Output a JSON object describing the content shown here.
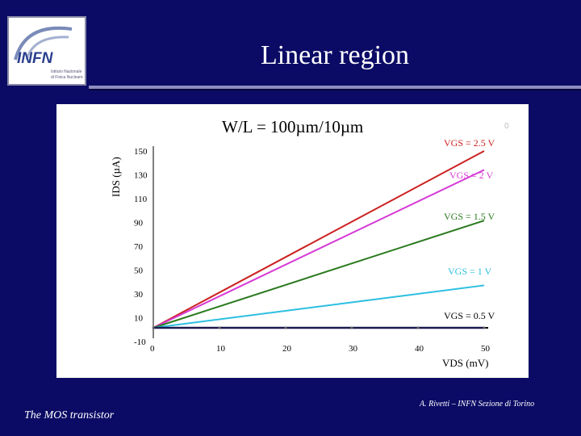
{
  "slide": {
    "title": "Linear region",
    "footer_left": "The MOS transistor",
    "footer_right": "A. Rivetti – INFN Sezione di Torino"
  },
  "logo": {
    "mark": "INFN",
    "line1": "Istituto Nazionale",
    "line2": "di Fisica Nucleare"
  },
  "colors": {
    "background": "#0b0b66",
    "vgs_2_5": "#cc2222",
    "vgs_2": "#d63ad6",
    "vgs_1_5": "#2a7a1e",
    "vgs_1": "#2bbfe0",
    "vgs_0_5": "#1a1a50"
  },
  "chart_data": {
    "type": "line",
    "title": "W/L = 100µm/10µm",
    "xlabel": "VDS (mV)",
    "ylabel": "IDS (µA)",
    "xlim": [
      0,
      50
    ],
    "ylim": [
      -10,
      160
    ],
    "x_ticks": [
      "0",
      "10",
      "20",
      "30",
      "40",
      "50"
    ],
    "y_ticks": [
      "150",
      "130",
      "110",
      "90",
      "70",
      "50",
      "30",
      "10",
      "-10"
    ],
    "extra_label": "0",
    "series": [
      {
        "name": "VGS = 2.5 V",
        "x": [
          0,
          50
        ],
        "y": [
          0,
          150
        ],
        "color": "#cc2222"
      },
      {
        "name": "VGS = 2 V",
        "x": [
          0,
          50
        ],
        "y": [
          0,
          134
        ],
        "color": "#d63ad6"
      },
      {
        "name": "VGS = 1.5 V",
        "x": [
          0,
          50
        ],
        "y": [
          0,
          91
        ],
        "color": "#2a7a1e"
      },
      {
        "name": "VGS = 1 V",
        "x": [
          0,
          50
        ],
        "y": [
          0,
          36
        ],
        "color": "#2bbfe0"
      },
      {
        "name": "VGS = 0.5 V",
        "x": [
          0,
          50
        ],
        "y": [
          0,
          0
        ],
        "color": "#1a1a50"
      }
    ]
  }
}
